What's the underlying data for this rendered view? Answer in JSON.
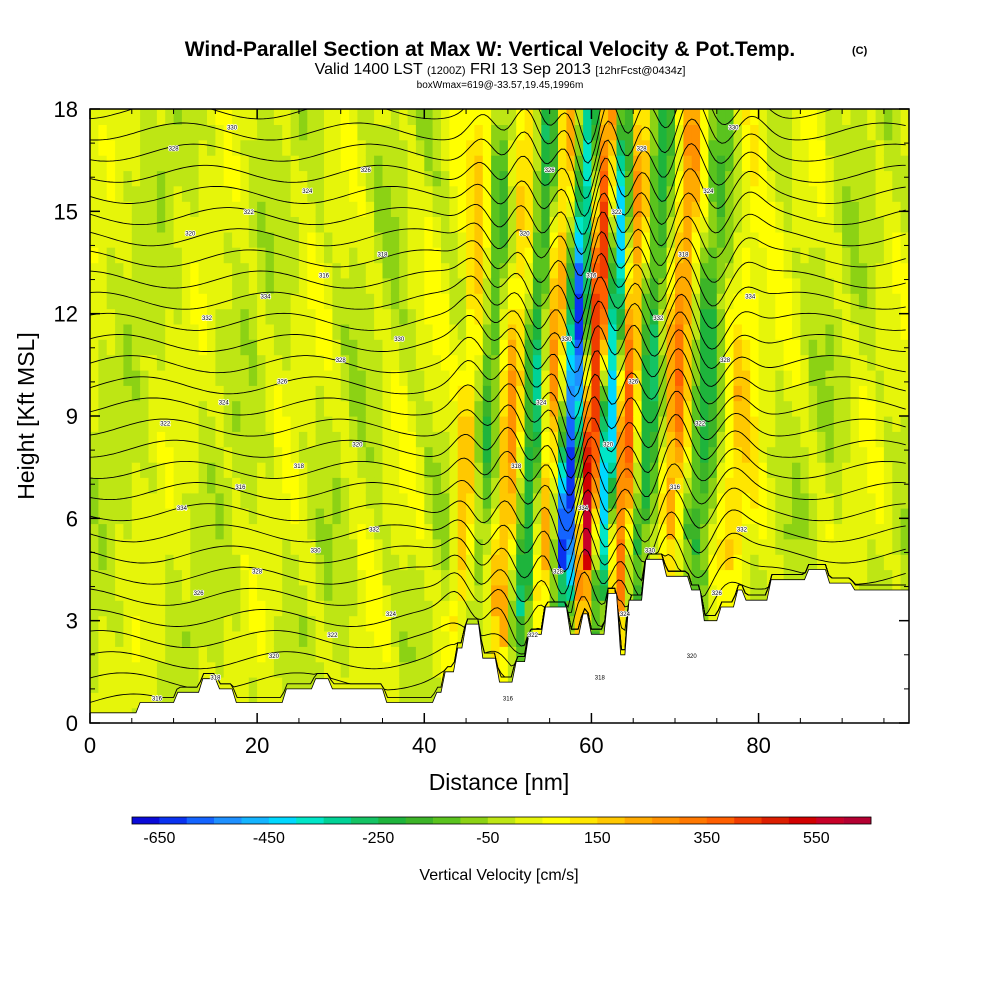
{
  "chart_data": {
    "type": "heatmap",
    "title": {
      "main": "Wind-Parallel Section at Max W: Vertical Velocity & Pot.Temp.",
      "copyright": "(C)",
      "valid_prefix": "Valid 1400 LST",
      "valid_utc": "(1200Z)",
      "valid_date": "FRI 13 Sep 2013",
      "forecast": "[12hrFcst@0434z]",
      "box_info": "boxWmax=619@-33.57,19.45,1996m"
    },
    "xlabel": "Distance [nm]",
    "ylabel": "Height [Kft MSL]",
    "xlim": [
      0,
      98
    ],
    "ylim": [
      0,
      18
    ],
    "x_ticks": [
      0,
      20,
      40,
      60,
      80
    ],
    "x_tick_labels": [
      "0",
      "20",
      "40",
      "60",
      "80"
    ],
    "y_ticks": [
      0,
      3,
      6,
      9,
      12,
      15,
      18
    ],
    "y_tick_labels": [
      "0",
      "3",
      "6",
      "9",
      "12",
      "15",
      "18"
    ],
    "colorbar": {
      "label": "Vertical Velocity [cm/s]",
      "min": -700,
      "max": 650,
      "step": 50,
      "tick_values": [
        -650,
        -450,
        -250,
        -50,
        150,
        350,
        550
      ],
      "tick_labels": [
        "-650",
        "-450",
        "-250",
        "-50",
        "150",
        "350",
        "550"
      ],
      "colors": [
        "#0a0ad8",
        "#0a32f0",
        "#1464ff",
        "#1e90ff",
        "#14b4ff",
        "#00d8ff",
        "#00e6c8",
        "#00d296",
        "#14c364",
        "#1eb43c",
        "#3cb428",
        "#5ac31e",
        "#8cd214",
        "#bee614",
        "#e6f50a",
        "#ffff00",
        "#ffe600",
        "#ffc800",
        "#ffaa00",
        "#ff9100",
        "#ff7800",
        "#ff5f00",
        "#f03c00",
        "#dc1e00",
        "#d20000",
        "#c80028",
        "#b40032"
      ]
    },
    "velocity_features": [
      {
        "x": 45.5,
        "amp": 220,
        "width": 1.0,
        "kind": "updraft"
      },
      {
        "x": 47.5,
        "amp": -160,
        "width": 1.1,
        "kind": "downdraft"
      },
      {
        "x": 50.5,
        "amp": 230,
        "width": 1.1,
        "kind": "updraft"
      },
      {
        "x": 53.0,
        "amp": -320,
        "width": 1.0,
        "kind": "downdraft"
      },
      {
        "x": 55.3,
        "amp": 260,
        "width": 0.9,
        "kind": "updraft"
      },
      {
        "x": 57.8,
        "amp": -640,
        "width": 0.9,
        "kind": "downdraft"
      },
      {
        "x": 60.2,
        "amp": 600,
        "width": 0.9,
        "kind": "updraft"
      },
      {
        "x": 62.2,
        "amp": -560,
        "width": 0.8,
        "kind": "downdraft"
      },
      {
        "x": 64.2,
        "amp": 380,
        "width": 1.0,
        "kind": "updraft"
      },
      {
        "x": 66.8,
        "amp": -300,
        "width": 1.1,
        "kind": "downdraft"
      },
      {
        "x": 70.2,
        "amp": 300,
        "width": 1.1,
        "kind": "updraft"
      },
      {
        "x": 73.5,
        "amp": -200,
        "width": 1.2,
        "kind": "downdraft"
      },
      {
        "x": 77.5,
        "amp": 140,
        "width": 1.4,
        "kind": "updraft"
      }
    ],
    "terrain_kft": {
      "x": [
        0,
        5.5,
        6,
        10,
        10.5,
        13,
        13.5,
        15,
        15.5,
        17,
        17.5,
        23,
        23.5,
        26.5,
        27,
        28.5,
        29,
        35,
        35.5,
        41,
        41.5,
        42,
        42.5,
        43.5,
        44,
        44.5,
        45,
        46.5,
        47,
        48.5,
        49,
        50.5,
        51,
        52,
        52.5,
        54,
        54.5,
        57,
        57.5,
        58.5,
        59,
        59.5,
        60,
        61.5,
        62,
        63,
        63.5,
        64,
        64.5,
        66,
        66.5,
        68.5,
        69,
        71.5,
        72,
        73,
        73.5,
        75,
        75.5,
        77,
        77.5,
        78,
        78.5,
        81,
        81.5,
        85.5,
        86,
        88,
        88.5,
        91,
        91.5,
        98
      ],
      "height": [
        0.3,
        0.3,
        0.6,
        0.6,
        0.9,
        0.9,
        1.3,
        1.3,
        1.0,
        1.0,
        0.6,
        0.6,
        1.0,
        1.0,
        1.3,
        1.3,
        1.0,
        1.0,
        0.6,
        0.6,
        0.9,
        0.9,
        1.5,
        1.5,
        2.2,
        2.2,
        2.9,
        2.9,
        1.9,
        1.9,
        1.2,
        1.2,
        1.8,
        1.8,
        2.6,
        2.6,
        3.4,
        3.4,
        2.6,
        2.6,
        3.2,
        3.2,
        2.6,
        2.6,
        3.8,
        3.8,
        2.0,
        2.0,
        3.6,
        3.6,
        4.8,
        4.8,
        4.3,
        4.3,
        3.9,
        3.9,
        3.0,
        3.0,
        3.4,
        3.4,
        3.9,
        3.9,
        3.6,
        3.6,
        4.2,
        4.2,
        4.5,
        4.5,
        4.1,
        4.1,
        3.9,
        3.9
      ]
    },
    "theta_contours": {
      "count": 30,
      "contour_labels": [
        "316",
        "318",
        "320",
        "322",
        "324",
        "326",
        "328",
        "330",
        "332",
        "334"
      ]
    }
  }
}
